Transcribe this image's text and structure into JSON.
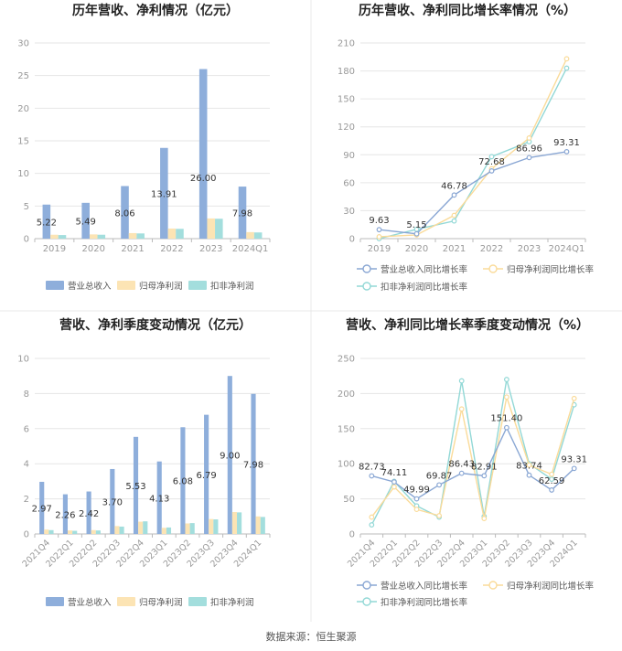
{
  "source": "数据来源：恒生聚源",
  "colors": {
    "revenue": "#8eaedb",
    "parent_profit": "#fce4b4",
    "deducted_profit": "#a3dedd",
    "revenue_line": "#8aa7d4",
    "parent_line": "#fadb9a",
    "deducted_line": "#92d8d6",
    "axis": "#999999",
    "grid": "#e6e6e6",
    "text": "#444444",
    "label": "#333333",
    "divider": "#e8e8e8"
  },
  "chart_data": [
    {
      "id": "annual-bar",
      "type": "bar",
      "title": "历年营收、净利情况（亿元）",
      "categories": [
        "2019",
        "2020",
        "2021",
        "2022",
        "2023",
        "2024Q1"
      ],
      "ylim": [
        0,
        30
      ],
      "yticks": [
        0,
        5,
        10,
        15,
        20,
        25,
        30
      ],
      "series": [
        {
          "name": "营业总收入",
          "values": [
            5.22,
            5.49,
            8.06,
            13.91,
            26.0,
            7.98
          ],
          "labels": [
            "5.22",
            "5.49",
            "8.06",
            "13.91",
            "26.00",
            "7.98"
          ]
        },
        {
          "name": "归母净利润",
          "values": [
            0.6,
            0.65,
            0.85,
            1.55,
            3.1,
            1.0
          ]
        },
        {
          "name": "扣非净利润",
          "values": [
            0.55,
            0.6,
            0.8,
            1.5,
            3.05,
            0.95
          ]
        }
      ]
    },
    {
      "id": "annual-line",
      "type": "line",
      "title": "历年营收、净利同比增长率情况（%）",
      "categories": [
        "2019",
        "2020",
        "2021",
        "2022",
        "2023",
        "2024Q1"
      ],
      "ylim": [
        0,
        210
      ],
      "yticks": [
        0,
        30,
        60,
        90,
        120,
        150,
        180,
        210
      ],
      "series": [
        {
          "name": "营业总收入同比增长率",
          "values": [
            9.63,
            5.15,
            46.78,
            72.68,
            86.96,
            93.31
          ],
          "labels": [
            "9.63",
            "5.15",
            "46.78",
            "72.68",
            "86.96",
            "93.31"
          ]
        },
        {
          "name": "归母净利润同比增长率",
          "values": [
            2,
            4,
            25,
            75,
            108,
            193
          ]
        },
        {
          "name": "扣非净利润同比增长率",
          "values": [
            0,
            10,
            19,
            88,
            104,
            183
          ]
        }
      ]
    },
    {
      "id": "quarter-bar",
      "type": "bar",
      "title": "营收、净利季度变动情况（亿元）",
      "categories": [
        "2021Q4",
        "2022Q1",
        "2022Q2",
        "2022Q3",
        "2022Q4",
        "2023Q1",
        "2023Q2",
        "2023Q3",
        "2023Q4",
        "2024Q1"
      ],
      "ylim": [
        0,
        10
      ],
      "yticks": [
        0,
        2,
        4,
        6,
        8,
        10
      ],
      "series": [
        {
          "name": "营业总收入",
          "values": [
            2.97,
            2.26,
            2.42,
            3.7,
            5.53,
            4.13,
            6.08,
            6.79,
            9.0,
            7.98
          ],
          "labels": [
            "2.97",
            "2.26",
            "2.42",
            "3.70",
            "5.53",
            "4.13",
            "6.08",
            "6.79",
            "9.00",
            "7.98"
          ]
        },
        {
          "name": "归母净利润",
          "values": [
            0.25,
            0.2,
            0.22,
            0.45,
            0.7,
            0.35,
            0.6,
            0.85,
            1.25,
            1.0
          ]
        },
        {
          "name": "扣非净利润",
          "values": [
            0.22,
            0.18,
            0.2,
            0.42,
            0.72,
            0.37,
            0.62,
            0.83,
            1.23,
            0.97
          ]
        }
      ]
    },
    {
      "id": "quarter-line",
      "type": "line",
      "title": "营收、净利同比增长率季度变动情况（%）",
      "categories": [
        "2021Q4",
        "2022Q1",
        "2022Q2",
        "2022Q3",
        "2022Q4",
        "2023Q1",
        "2023Q2",
        "2023Q3",
        "2023Q4",
        "2024Q1"
      ],
      "ylim": [
        0,
        250
      ],
      "yticks": [
        0,
        50,
        100,
        150,
        200,
        250
      ],
      "series": [
        {
          "name": "营业总收入同比增长率",
          "values": [
            82.73,
            74.11,
            49.99,
            69.87,
            86.43,
            82.91,
            151.4,
            83.74,
            62.59,
            93.31
          ],
          "labels": [
            "82.73",
            "74.11",
            "49.99",
            "69.87",
            "86.43",
            "82.91",
            "151.40",
            "83.74",
            "62.59",
            "93.31"
          ]
        },
        {
          "name": "归母净利润同比增长率",
          "values": [
            24,
            67,
            35,
            26,
            178,
            22,
            195,
            98,
            85,
            193
          ]
        },
        {
          "name": "扣非净利润同比增长率",
          "values": [
            13,
            75,
            40,
            24,
            218,
            25,
            220,
            100,
            78,
            184
          ]
        }
      ]
    }
  ]
}
